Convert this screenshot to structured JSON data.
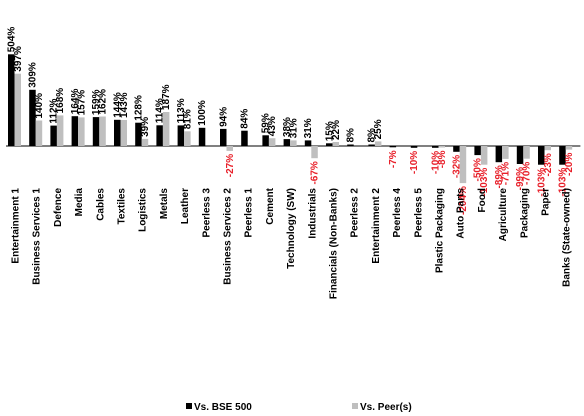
{
  "chart_data": {
    "type": "bar",
    "categories": [
      "Entertainment 1",
      "Business Services 1",
      "Defence",
      "Media",
      "Cables",
      "Textiles",
      "Logistics",
      "Metals",
      "Leather",
      "Peerless 3",
      "Business Services 2",
      "Peerless 1",
      "Cement",
      "Technology (SW)",
      "Industrials",
      "Financials (Non-Banks)",
      "Peerless 2",
      "Entertainment 2",
      "Peerless 4",
      "Peerless 5",
      "Plastic Packaging",
      "Auto Parts",
      "Food",
      "Agriculture",
      "Packaging",
      "Paper",
      "Banks (State-owned)"
    ],
    "series": [
      {
        "name": "Vs. BSE 500",
        "color": "#000000",
        "values": [
          504,
          309,
          112,
          164,
          159,
          144,
          128,
          114,
          113,
          100,
          94,
          84,
          59,
          38,
          31,
          15,
          8,
          8,
          -7,
          -10,
          -10,
          -32,
          -50,
          -89,
          -99,
          -103,
          -103
        ],
        "labels": [
          "504%",
          "309%",
          "112%",
          "164%",
          "159%",
          "144%",
          "128%",
          "114%",
          "113%",
          "100%",
          "94%",
          "84%",
          "59%",
          "38%",
          "31%",
          "15%",
          "8%",
          "8%",
          "-7%",
          "-10%",
          "-10%",
          "-32%",
          "-50%",
          "-89%",
          "-99%",
          "-103%",
          "-103%"
        ]
      },
      {
        "name": "Vs. Peer(s)",
        "color": "#bfbfbf",
        "values": [
          397,
          140,
          168,
          157,
          162,
          143,
          39,
          187,
          81,
          null,
          -27,
          null,
          43,
          31,
          -67,
          22,
          null,
          25,
          null,
          null,
          -8,
          -204,
          -103,
          -71,
          -70,
          -23,
          -20
        ],
        "labels": [
          "397%",
          "140%",
          "168%",
          "157%",
          "162%",
          "143%",
          "39%",
          "187%",
          "81%",
          "",
          "-27%",
          "",
          "43%",
          "31%",
          "-67%",
          "22%",
          "",
          "25%",
          "",
          "",
          "-8%",
          "-204%",
          "-103%",
          "-71%",
          "-70%",
          "-23%",
          "-20%"
        ]
      }
    ],
    "ylim": [
      -210,
      520
    ],
    "grid": false,
    "legend_placement": "bottom",
    "negative_label_color": "#e8202a"
  }
}
